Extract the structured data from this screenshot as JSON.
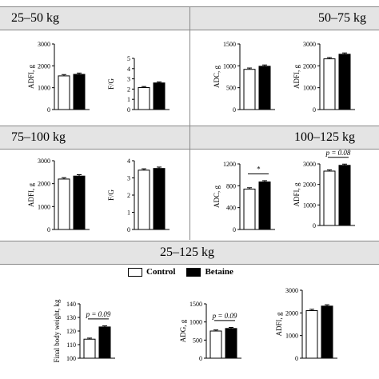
{
  "sections": {
    "s1": "25–50 kg",
    "s2": "50–75 kg",
    "s3": "75–100 kg",
    "s4": "100–125 kg",
    "s5": "25–125 kg"
  },
  "legend": {
    "control": "Control",
    "betaine": "Betaine"
  },
  "colors": {
    "control": "#ffffff",
    "betaine": "#000000",
    "header_bg": "#e4e4e4"
  },
  "chart_data": [
    {
      "id": "p1",
      "type": "bar",
      "ylabel": "ADFI, g",
      "ylim": [
        0,
        3000
      ],
      "yticks": [
        "0",
        "1000",
        "2000",
        "3000"
      ],
      "series": [
        {
          "name": "Control",
          "values": [
            1540
          ]
        },
        {
          "name": "Betaine",
          "values": [
            1610
          ]
        }
      ]
    },
    {
      "id": "p2",
      "type": "bar",
      "ylabel": "F/G",
      "ylim": [
        0,
        5
      ],
      "yticks": [
        "0",
        "1",
        "2",
        "3",
        "4",
        "5"
      ],
      "series": [
        {
          "name": "Control",
          "values": [
            2.15
          ]
        },
        {
          "name": "Betaine",
          "values": [
            2.6
          ]
        }
      ]
    },
    {
      "id": "p3",
      "type": "bar",
      "ylabel": "ADC, g",
      "ylim": [
        0,
        1500
      ],
      "yticks": [
        "0",
        "500",
        "1000",
        "1500"
      ],
      "series": [
        {
          "name": "Control",
          "values": [
            920
          ]
        },
        {
          "name": "Betaine",
          "values": [
            990
          ]
        }
      ]
    },
    {
      "id": "p4",
      "type": "bar",
      "ylabel": "ADFI, g",
      "ylim": [
        0,
        3000
      ],
      "yticks": [
        "0",
        "1000",
        "2000",
        "3000"
      ],
      "series": [
        {
          "name": "Control",
          "values": [
            2320
          ]
        },
        {
          "name": "Betaine",
          "values": [
            2530
          ]
        }
      ]
    },
    {
      "id": "p5",
      "type": "bar",
      "ylabel": "ADFI, g",
      "ylim": [
        0,
        3000
      ],
      "yticks": [
        "0",
        "1000",
        "2000",
        "3000"
      ],
      "series": [
        {
          "name": "Control",
          "values": [
            2200
          ]
        },
        {
          "name": "Betaine",
          "values": [
            2330
          ]
        }
      ]
    },
    {
      "id": "p6",
      "type": "bar",
      "ylabel": "F/G",
      "ylim": [
        0,
        4
      ],
      "yticks": [
        "0",
        "1",
        "2",
        "3",
        "4"
      ],
      "series": [
        {
          "name": "Control",
          "values": [
            3.45
          ]
        },
        {
          "name": "Betaine",
          "values": [
            3.55
          ]
        }
      ]
    },
    {
      "id": "p7",
      "type": "bar",
      "ylabel": "ADC, g",
      "ylim": [
        0,
        1200
      ],
      "yticks": [
        "0",
        "400",
        "800",
        "1200"
      ],
      "series": [
        {
          "name": "Control",
          "values": [
            740
          ]
        },
        {
          "name": "Betaine",
          "values": [
            870
          ]
        }
      ],
      "annotation": "*"
    },
    {
      "id": "p8",
      "type": "bar",
      "ylabel": "ADFI, g",
      "ylim": [
        0,
        3000
      ],
      "yticks": [
        "0",
        "1000",
        "2000",
        "3000"
      ],
      "series": [
        {
          "name": "Control",
          "values": [
            2650
          ]
        },
        {
          "name": "Betaine",
          "values": [
            2930
          ]
        }
      ],
      "annotation": "p = 0.08"
    },
    {
      "id": "p9",
      "type": "bar",
      "ylabel": "Final body weight, kg",
      "ylim": [
        100,
        140
      ],
      "yticks": [
        "100",
        "110",
        "120",
        "130",
        "140"
      ],
      "series": [
        {
          "name": "Control",
          "values": [
            114
          ]
        },
        {
          "name": "Betaine",
          "values": [
            123
          ]
        }
      ],
      "annotation": "p = 0.09"
    },
    {
      "id": "p10",
      "type": "bar",
      "ylabel": "ADG, g",
      "ylim": [
        0,
        1500
      ],
      "yticks": [
        "0",
        "500",
        "1000",
        "1500"
      ],
      "series": [
        {
          "name": "Control",
          "values": [
            750
          ]
        },
        {
          "name": "Betaine",
          "values": [
            820
          ]
        }
      ],
      "annotation": "p = 0.09"
    },
    {
      "id": "p11",
      "type": "bar",
      "ylabel": "ADFI, g",
      "ylim": [
        0,
        3000
      ],
      "yticks": [
        "0",
        "1000",
        "2000",
        "3000"
      ],
      "series": [
        {
          "name": "Control",
          "values": [
            2100
          ]
        },
        {
          "name": "Betaine",
          "values": [
            2300
          ]
        }
      ]
    }
  ]
}
